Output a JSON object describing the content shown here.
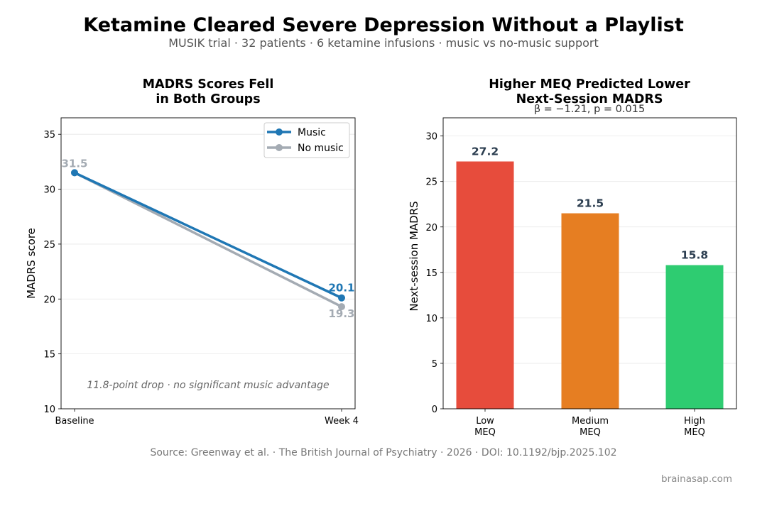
{
  "header": {
    "title": "Ketamine Cleared Severe Depression Without a Playlist",
    "subtitle": "MUSIK trial · 32 patients · 6 ketamine infusions · music vs no-music support"
  },
  "footer": {
    "source": "Source: Greenway et al. · The British Journal of Psychiatry · 2026 · DOI: 10.1192/bjp.2025.102",
    "credit": "brainasap.com"
  },
  "chart_data": [
    {
      "type": "line",
      "title_lines": [
        "MADRS Scores Fell",
        "in Both Groups"
      ],
      "xlabel": "",
      "ylabel": "MADRS score",
      "categories": [
        "Baseline",
        "Week 4"
      ],
      "series": [
        {
          "name": "Music",
          "values": [
            31.5,
            20.1
          ],
          "color": "#1f77b4",
          "value_labels": [
            "",
            "20.1"
          ]
        },
        {
          "name": "No music",
          "values": [
            31.5,
            19.3
          ],
          "color": "#a4abb3",
          "value_labels": [
            "31.5",
            "19.3"
          ]
        }
      ],
      "ylim": [
        10,
        36.5
      ],
      "yticks": [
        10,
        15,
        20,
        25,
        30,
        35
      ],
      "grid": "y",
      "legend": "top-right",
      "annotation": "11.8-point drop · no significant music advantage"
    },
    {
      "type": "bar",
      "title_lines": [
        "Higher MEQ Predicted Lower",
        "Next-Session MADRS"
      ],
      "subtitle": "β = −1.21, p = 0.015",
      "xlabel": "",
      "ylabel": "Next-session MADRS",
      "categories": [
        [
          "Low",
          "MEQ"
        ],
        [
          "Medium",
          "MEQ"
        ],
        [
          "High",
          "MEQ"
        ]
      ],
      "values": [
        27.2,
        21.5,
        15.8
      ],
      "value_labels": [
        "27.2",
        "21.5",
        "15.8"
      ],
      "colors": [
        "#e74c3c",
        "#e67e22",
        "#2ecc71"
      ],
      "label_color": "#2c3e50",
      "ylim": [
        0,
        32
      ],
      "yticks": [
        0,
        5,
        10,
        15,
        20,
        25,
        30
      ],
      "grid": "y"
    }
  ]
}
